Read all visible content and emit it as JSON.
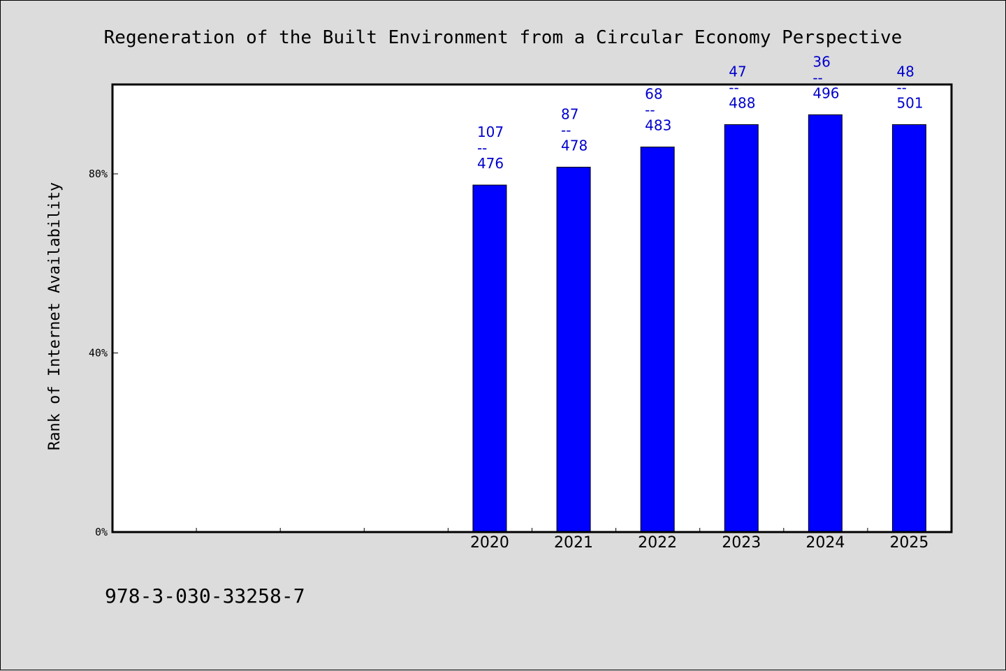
{
  "chart_data": {
    "type": "bar",
    "title": "Regeneration of the Built Environment from a Circular Economy Perspective",
    "ylabel": "Rank of Internet Availability",
    "xlabel": "",
    "ylim": [
      0,
      1
    ],
    "yticks": [
      0,
      0.4,
      0.8
    ],
    "ytick_labels": [
      "0%",
      "40%",
      "80%"
    ],
    "categories": [
      "",
      "",
      "",
      "",
      "2020",
      "2021",
      "2022",
      "2023",
      "2024",
      "2025"
    ],
    "values": [
      null,
      null,
      null,
      null,
      0.775,
      0.815,
      0.86,
      0.91,
      0.932,
      0.91
    ],
    "bar_labels": [
      null,
      null,
      null,
      null,
      {
        "top": "107",
        "sep": "--",
        "bottom": "476"
      },
      {
        "top": "87",
        "sep": "--",
        "bottom": "478"
      },
      {
        "top": "68",
        "sep": "--",
        "bottom": "483"
      },
      {
        "top": "47",
        "sep": "--",
        "bottom": "488"
      },
      {
        "top": "36",
        "sep": "--",
        "bottom": "496"
      },
      {
        "top": "48",
        "sep": "--",
        "bottom": "501"
      }
    ],
    "grid": false,
    "colors": {
      "bar": "#0000ff",
      "label": "#0000cc",
      "background": "#dcdcdc",
      "plot_background": "#ffffff"
    }
  },
  "footer": {
    "isbn": "978-3-030-33258-7"
  }
}
